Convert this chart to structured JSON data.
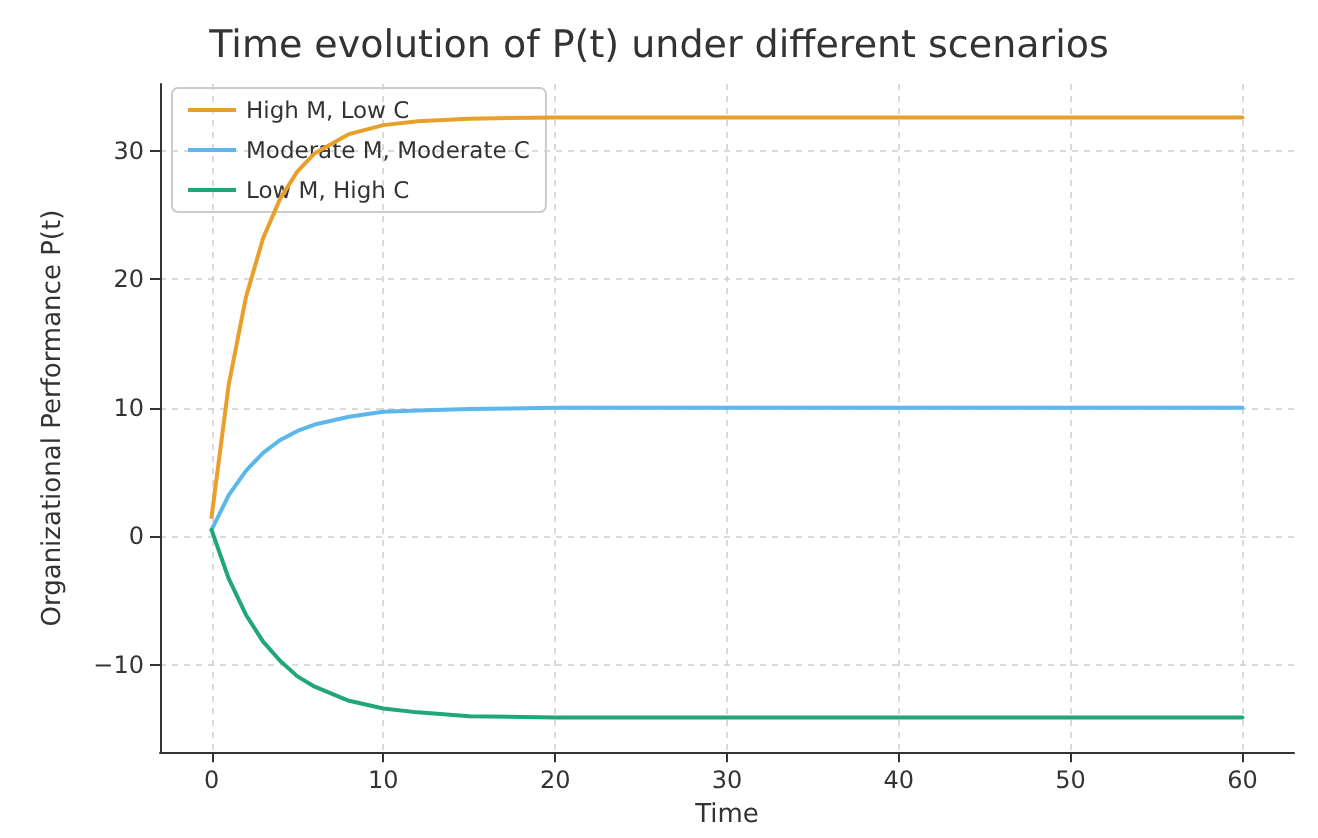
{
  "chart_data": {
    "type": "line",
    "title": "Time evolution of P(t) under different scenarios",
    "xlabel": "Time",
    "ylabel": "Organizational Performance P(t)",
    "x": [
      0,
      1,
      2,
      3,
      4,
      5,
      6,
      8,
      10,
      12,
      15,
      20,
      30,
      40,
      50,
      60
    ],
    "series": [
      {
        "name": "High M, Low C",
        "color": "#e8a02a",
        "values": [
          1.5,
          11.8,
          18.6,
          23.2,
          26.3,
          28.4,
          29.8,
          31.3,
          32.0,
          32.3,
          32.5,
          32.6,
          32.6,
          32.6,
          32.6,
          32.6
        ]
      },
      {
        "name": "Moderate M, Moderate C",
        "color": "#5cb8ea",
        "values": [
          0.5,
          3.2,
          5.1,
          6.5,
          7.5,
          8.2,
          8.7,
          9.3,
          9.7,
          9.8,
          9.9,
          10.0,
          10.0,
          10.0,
          10.0,
          10.0
        ]
      },
      {
        "name": "Low M, High C",
        "color": "#1fa67a",
        "values": [
          0.5,
          -3.3,
          -6.1,
          -8.2,
          -9.7,
          -10.9,
          -11.7,
          -12.8,
          -13.4,
          -13.7,
          -14.0,
          -14.1,
          -14.1,
          -14.1,
          -14.1,
          -14.1
        ]
      }
    ],
    "xlim": [
      -3,
      63
    ],
    "xticks": [
      0,
      10,
      20,
      30,
      40,
      50,
      60
    ],
    "ylim": [
      -16.8,
      35.2
    ],
    "yticks": [
      {
        "value": -10,
        "label": "−10"
      },
      0,
      10,
      20,
      30
    ],
    "grid": true,
    "legend": "top left",
    "marker": "none",
    "line_style": "solid"
  }
}
